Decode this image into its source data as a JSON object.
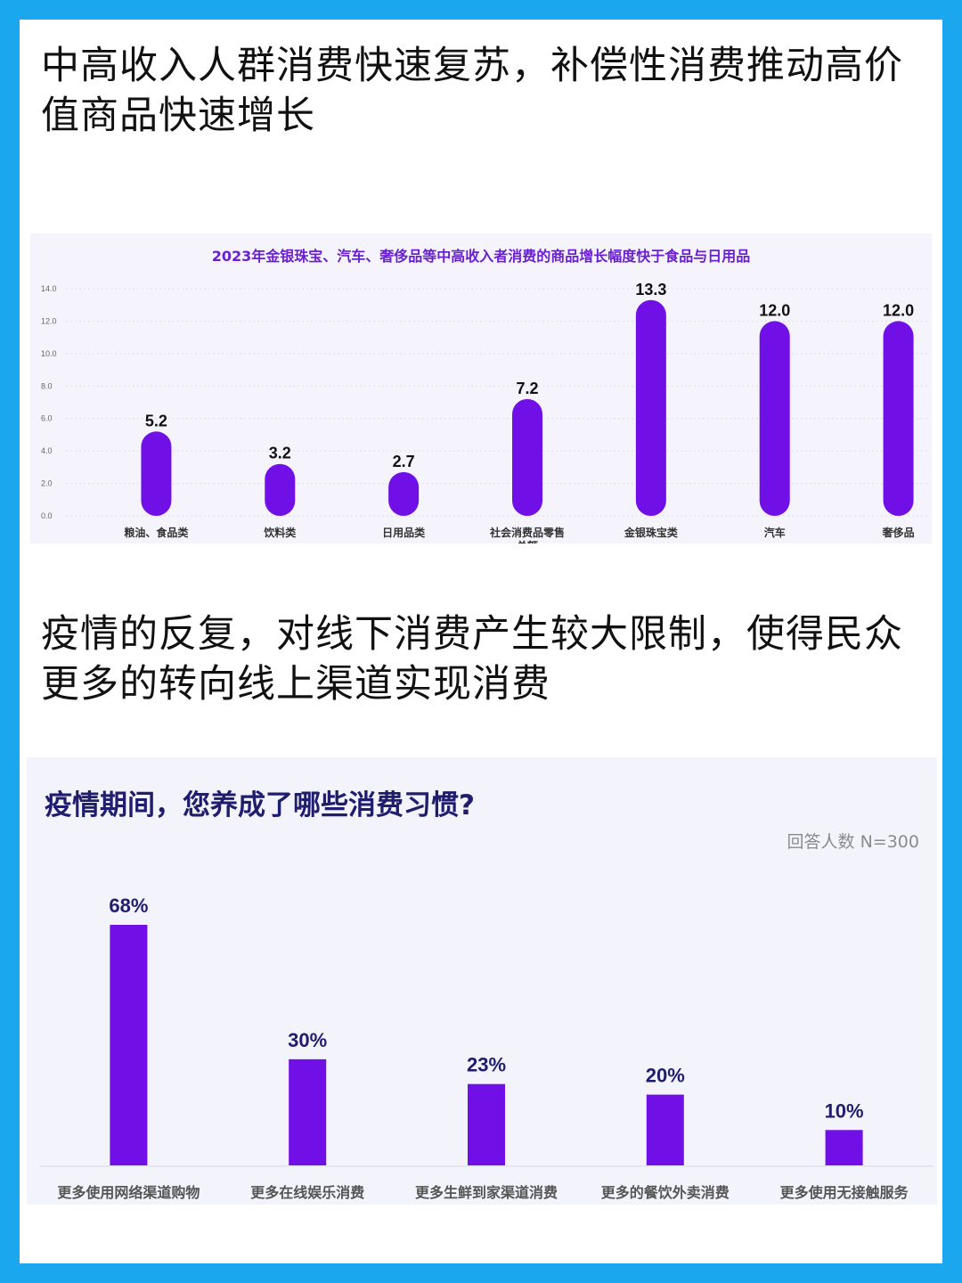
{
  "headline1": "中高收入人群消费快速复苏，补偿性消费推动高价值商品快速增长",
  "headline2": "疫情的反复，对线下消费产生较大限制，使得民众更多的转向线上渠道实现消费",
  "colors": {
    "frame": "#1aa7ee",
    "bar": "#7010e6",
    "title1": "#6a1fd1",
    "title2": "#1f1d6e"
  },
  "chart_data": [
    {
      "type": "bar",
      "title": "2023年金银珠宝、汽车、奢侈品等中高收入者消费的商品增长幅度快于食品与日用品",
      "categories": [
        "粮油、食品类",
        "饮料类",
        "日用品类",
        "社会消费品零售总额",
        "金银珠宝类",
        "汽车",
        "奢侈品"
      ],
      "values": [
        5.2,
        3.2,
        2.7,
        7.2,
        13.3,
        12.0,
        12.0
      ],
      "value_labels": [
        "5.2",
        "3.2",
        "2.7",
        "7.2",
        "13.3",
        "12.0",
        "12.0"
      ],
      "yticks": [
        "0.0",
        "2.0",
        "4.0",
        "6.0",
        "8.0",
        "10.0",
        "12.0",
        "14.0"
      ],
      "ylim": [
        0,
        14
      ],
      "grid": true
    },
    {
      "type": "bar",
      "title": "疫情期间，您养成了哪些消费习惯?",
      "note": "回答人数 N=300",
      "categories": [
        "更多使用网络渠道购物",
        "更多在线娱乐消费",
        "更多生鲜到家渠道消费",
        "更多的餐饮外卖消费",
        "更多使用无接触服务"
      ],
      "values": [
        68,
        30,
        23,
        20,
        10
      ],
      "value_labels": [
        "68%",
        "30%",
        "23%",
        "20%",
        "10%"
      ],
      "ylim": [
        0,
        70
      ]
    }
  ]
}
